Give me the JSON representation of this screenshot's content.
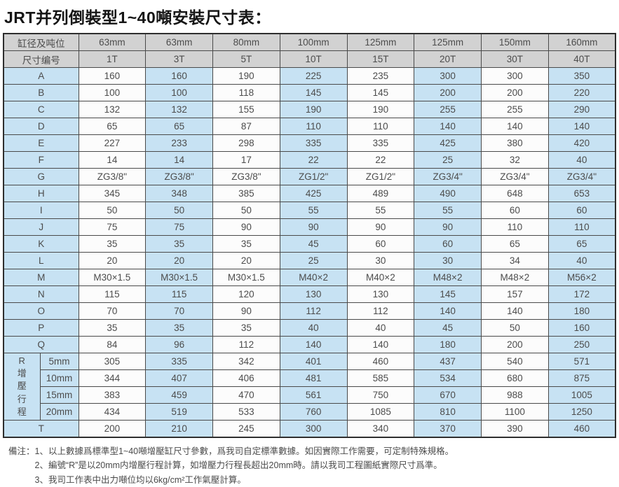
{
  "title": "JRT并列倒裝型1~40噸安裝尺寸表：",
  "table": {
    "corner_labels": [
      "缸径及吨位",
      "尺寸编号"
    ],
    "diameters": [
      "63mm",
      "63mm",
      "80mm",
      "100mm",
      "125mm",
      "125mm",
      "150mm",
      "160mm"
    ],
    "tonnages": [
      "1T",
      "3T",
      "5T",
      "10T",
      "15T",
      "20T",
      "30T",
      "40T"
    ],
    "rows": [
      {
        "label": "A",
        "values": [
          "160",
          "160",
          "190",
          "225",
          "235",
          "300",
          "300",
          "350"
        ]
      },
      {
        "label": "B",
        "values": [
          "100",
          "100",
          "118",
          "145",
          "145",
          "200",
          "200",
          "220"
        ]
      },
      {
        "label": "C",
        "values": [
          "132",
          "132",
          "155",
          "190",
          "190",
          "255",
          "255",
          "290"
        ]
      },
      {
        "label": "D",
        "values": [
          "65",
          "65",
          "87",
          "110",
          "110",
          "140",
          "140",
          "140"
        ]
      },
      {
        "label": "E",
        "values": [
          "227",
          "233",
          "298",
          "335",
          "335",
          "425",
          "380",
          "420"
        ]
      },
      {
        "label": "F",
        "values": [
          "14",
          "14",
          "17",
          "22",
          "22",
          "25",
          "32",
          "40"
        ]
      },
      {
        "label": "G",
        "values": [
          "ZG3/8\"",
          "ZG3/8\"",
          "ZG3/8\"",
          "ZG1/2\"",
          "ZG1/2\"",
          "ZG3/4\"",
          "ZG3/4\"",
          "ZG3/4\""
        ]
      },
      {
        "label": "H",
        "values": [
          "345",
          "348",
          "385",
          "425",
          "489",
          "490",
          "648",
          "653"
        ]
      },
      {
        "label": "I",
        "values": [
          "50",
          "50",
          "50",
          "55",
          "55",
          "55",
          "60",
          "60"
        ]
      },
      {
        "label": "J",
        "values": [
          "75",
          "75",
          "90",
          "90",
          "90",
          "90",
          "110",
          "110"
        ]
      },
      {
        "label": "K",
        "values": [
          "35",
          "35",
          "35",
          "45",
          "60",
          "60",
          "65",
          "65"
        ]
      },
      {
        "label": "L",
        "values": [
          "20",
          "20",
          "20",
          "25",
          "30",
          "30",
          "34",
          "40"
        ]
      },
      {
        "label": "M",
        "values": [
          "M30×1.5",
          "M30×1.5",
          "M30×1.5",
          "M40×2",
          "M40×2",
          "M48×2",
          "M48×2",
          "M56×2"
        ]
      },
      {
        "label": "N",
        "values": [
          "115",
          "115",
          "120",
          "130",
          "130",
          "145",
          "157",
          "172"
        ]
      },
      {
        "label": "O",
        "values": [
          "70",
          "70",
          "90",
          "112",
          "112",
          "140",
          "140",
          "180"
        ]
      },
      {
        "label": "P",
        "values": [
          "35",
          "35",
          "35",
          "40",
          "40",
          "45",
          "50",
          "160"
        ]
      },
      {
        "label": "Q",
        "values": [
          "84",
          "96",
          "112",
          "140",
          "140",
          "180",
          "200",
          "250"
        ]
      }
    ],
    "r_block": {
      "vertical_label": "R增壓行程",
      "subrows": [
        {
          "label": "5mm",
          "values": [
            "305",
            "335",
            "342",
            "401",
            "460",
            "437",
            "540",
            "571"
          ]
        },
        {
          "label": "10mm",
          "values": [
            "344",
            "407",
            "406",
            "481",
            "585",
            "534",
            "680",
            "875"
          ]
        },
        {
          "label": "15mm",
          "values": [
            "383",
            "459",
            "470",
            "561",
            "750",
            "670",
            "988",
            "1005"
          ]
        },
        {
          "label": "20mm",
          "values": [
            "434",
            "519",
            "533",
            "760",
            "1085",
            "810",
            "1100",
            "1250"
          ]
        }
      ]
    },
    "t_row": {
      "label": "T",
      "values": [
        "200",
        "210",
        "245",
        "300",
        "340",
        "370",
        "390",
        "460"
      ]
    }
  },
  "notes": {
    "prefix": "備注：",
    "items": [
      "1、以上數據爲標準型1~40噸增壓缸尺寸參數，爲我司自定標準數據。如因實際工作需要，可定制特殊規格。",
      "2、編號“R”是以20mm内增壓行程計算，如增壓力行程長超出20mm時。請以我司工程圖紙實際尺寸爲準。",
      "3、我司工作表中出力噸位均以6kg/cm²工作氣壓計算。"
    ]
  },
  "colors": {
    "header_bg": "#d2d2d2",
    "label_bg": "#c7e2f3",
    "alt_column_bg": "#c7e2f3",
    "plain_column_bg": "#fcfcfc",
    "border": "#4a4a4a",
    "text": "#4c4c4c"
  }
}
